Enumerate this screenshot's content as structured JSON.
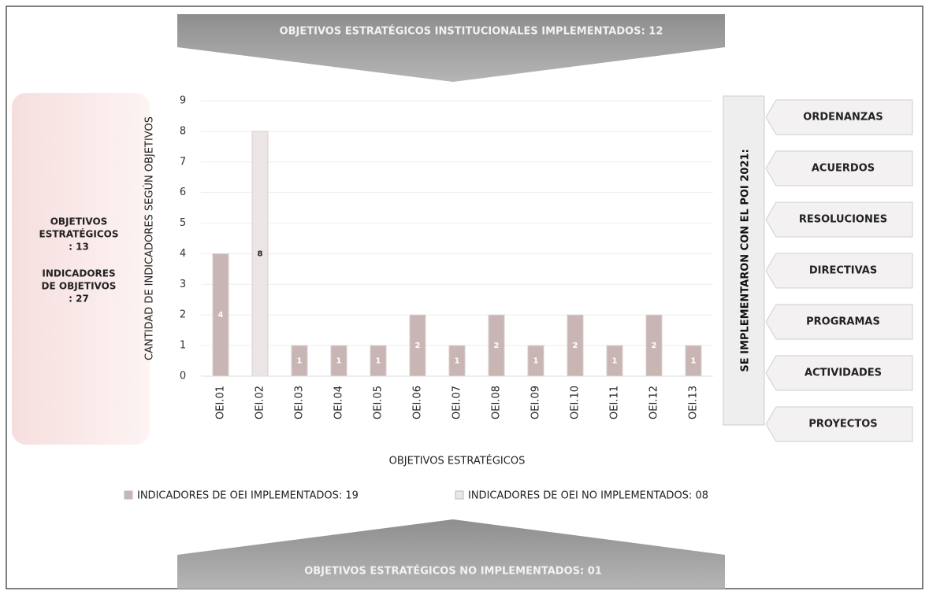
{
  "top_banner": "OBJETIVOS ESTRATÉGICOS INSTITUCIONALES IMPLEMENTADOS: 12",
  "bottom_banner": "OBJETIVOS ESTRATÉGICOS NO IMPLEMENTADOS: 01",
  "left_panel": {
    "objectives": [
      "OBJETIVOS",
      "ESTRATÉGICOS",
      ": 13"
    ],
    "indicators": [
      "INDICADORES",
      "DE OBJETIVOS",
      ": 27"
    ]
  },
  "right_panel": {
    "title": "SE IMPLEMENTARON CON EL POI 2021:",
    "items": [
      "ORDENANZAS",
      "ACUERDOS",
      "RESOLUCIONES",
      "DIRECTIVAS",
      "PROGRAMAS",
      "ACTIVIDADES",
      "PROYECTOS"
    ]
  },
  "chart_data": {
    "type": "bar",
    "x_label": "OBJETIVOS ESTRATÉGICOS",
    "y_label": "CANTIDAD DE INDICADORES SEGÚN OBJETIVOS",
    "categories": [
      "OEI.01",
      "OEI.02",
      "OEI.03",
      "OEI.04",
      "OEI.05",
      "OEI.06",
      "OEI.07",
      "OEI.08",
      "OEI.09",
      "OEI.10",
      "OEI.11",
      "OEI.12",
      "OEI.13"
    ],
    "series": [
      {
        "name": "INDICADORES DE OEI IMPLEMENTADOS: 19",
        "color": "#c9b5b4",
        "values": [
          4,
          null,
          1,
          1,
          1,
          2,
          1,
          2,
          1,
          2,
          1,
          2,
          1
        ]
      },
      {
        "name": "INDICADORES DE OEI NO IMPLEMENTADOS: 08",
        "color": "#ebe6e5",
        "values": [
          null,
          8,
          null,
          null,
          null,
          null,
          null,
          null,
          null,
          null,
          null,
          null,
          null
        ]
      }
    ],
    "ylim": [
      0,
      9
    ],
    "yticks": [
      0,
      1,
      2,
      3,
      4,
      5,
      6,
      7,
      8,
      9
    ],
    "grid": true,
    "legend": "bottom"
  }
}
